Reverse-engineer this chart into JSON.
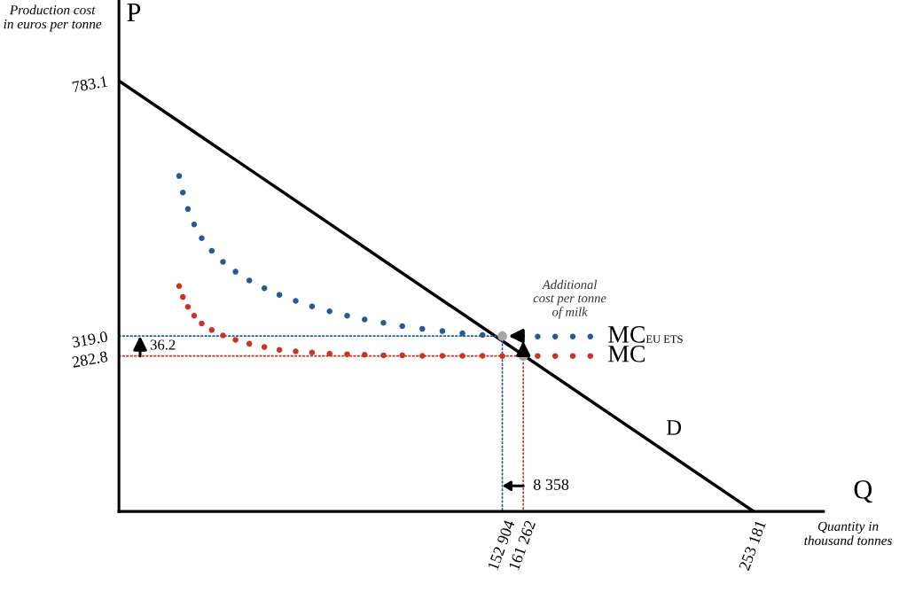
{
  "chart_data": {
    "type": "line",
    "ylabel": "P",
    "xlabel": "Q",
    "xlim": [
      0,
      281000
    ],
    "ylim": [
      0,
      930
    ],
    "xticks": [
      {
        "value": 152904,
        "label": "152 904"
      },
      {
        "value": 161262,
        "label": "161 262"
      },
      {
        "value": 253181,
        "label": "253 181"
      }
    ],
    "yticks": [
      {
        "value": 282.8,
        "label": "282.8"
      },
      {
        "value": 319,
        "label": "319.0"
      },
      {
        "value": 783.1,
        "label": "783.1"
      }
    ],
    "grid": false,
    "series": [
      {
        "name": "D",
        "color": "#000000",
        "x": [
          0,
          253181
        ],
        "values": [
          783.1,
          0
        ]
      },
      {
        "name": "MC$_{EU ETS}$",
        "type": "scatter",
        "marker": "circle",
        "color": "#245a96",
        "x": [
          24000,
          25500,
          27500,
          30000,
          33000,
          37000,
          41500,
          46500,
          52000,
          58000,
          64000,
          70500,
          77000,
          84000,
          91000,
          98000,
          105500,
          113000,
          121000,
          129000,
          137000,
          145000,
          167000,
          174000,
          181000,
          188000
        ],
        "values": [
          610,
          580,
          550,
          522,
          497,
          474,
          454,
          436,
          420,
          406,
          394,
          383,
          373,
          364,
          356,
          349,
          343,
          337,
          332,
          328,
          324,
          321,
          318,
          318,
          318,
          318
        ]
      },
      {
        "name": "MC",
        "type": "scatter",
        "marker": "circle",
        "color": "#cc3322",
        "x": [
          24000,
          25500,
          27500,
          30000,
          33000,
          37000,
          41500,
          46500,
          52000,
          58000,
          64000,
          70500,
          77000,
          84000,
          91000,
          98000,
          105500,
          113000,
          121000,
          129000,
          137000,
          145000,
          152904,
          167000,
          174000,
          181000,
          188000
        ],
        "values": [
          410,
          390,
          372,
          356,
          342,
          330,
          320,
          312,
          305,
          299,
          294,
          291,
          289,
          287,
          286,
          285,
          284,
          284,
          283,
          283,
          283,
          283,
          282.8,
          282.8,
          282.8,
          282.8,
          282.8
        ]
      },
      {
        "type": "line",
        "line_style": "dotted",
        "color": "#245a96",
        "x": [
          0,
          152904,
          152904
        ],
        "values": [
          319,
          319,
          0
        ]
      },
      {
        "type": "line",
        "line_style": "dotted",
        "color": "#cc3322",
        "x": [
          0,
          161262,
          161262
        ],
        "values": [
          282.8,
          282.8,
          0
        ]
      },
      {
        "type": "scatter",
        "marker": "circle",
        "color": "#a6a6a6",
        "x": [
          152904,
          161262
        ],
        "values": [
          319,
          282.8
        ]
      }
    ],
    "annotations": [
      "Production cost in euros per tonne",
      "Quantity in thousand tonnes",
      "36.2",
      "8 358",
      "Additional cost per tonne of milk"
    ]
  }
}
